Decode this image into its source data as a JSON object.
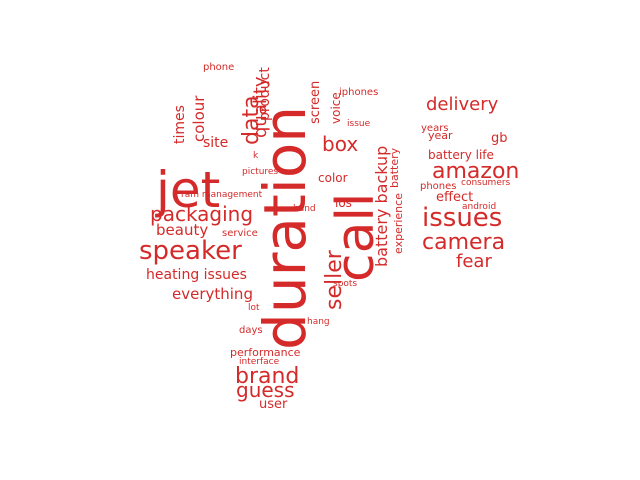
{
  "chart_data": {
    "type": "wordcloud",
    "color": "#d42a2a",
    "words": [
      {
        "text": "duration",
        "weight": 96,
        "orientation": "vertical"
      },
      {
        "text": "call",
        "weight": 90,
        "orientation": "vertical"
      },
      {
        "text": "jet",
        "weight": 62,
        "orientation": "horizontal"
      },
      {
        "text": "speaker",
        "weight": 40,
        "orientation": "horizontal"
      },
      {
        "text": "seller",
        "weight": 36,
        "orientation": "vertical"
      },
      {
        "text": "issues",
        "weight": 34,
        "orientation": "horizontal"
      },
      {
        "text": "packaging",
        "weight": 30,
        "orientation": "horizontal"
      },
      {
        "text": "camera",
        "weight": 30,
        "orientation": "horizontal"
      },
      {
        "text": "data",
        "weight": 29,
        "orientation": "vertical"
      },
      {
        "text": "amazon",
        "weight": 28,
        "orientation": "horizontal"
      },
      {
        "text": "box",
        "weight": 28,
        "orientation": "horizontal"
      },
      {
        "text": "brand",
        "weight": 26,
        "orientation": "horizontal"
      },
      {
        "text": "battery backup",
        "weight": 24,
        "orientation": "vertical"
      },
      {
        "text": "guess",
        "weight": 24,
        "orientation": "horizontal"
      },
      {
        "text": "quality",
        "weight": 22,
        "orientation": "vertical"
      },
      {
        "text": "fear",
        "weight": 22,
        "orientation": "horizontal"
      },
      {
        "text": "delivery",
        "weight": 20,
        "orientation": "horizontal"
      },
      {
        "text": "colour",
        "weight": 18,
        "orientation": "vertical"
      },
      {
        "text": "everything",
        "weight": 17,
        "orientation": "horizontal"
      },
      {
        "text": "beauty",
        "weight": 16,
        "orientation": "horizontal"
      },
      {
        "text": "product",
        "weight": 16,
        "orientation": "vertical"
      },
      {
        "text": "times",
        "weight": 15,
        "orientation": "vertical"
      },
      {
        "text": "site",
        "weight": 15,
        "orientation": "horizontal"
      },
      {
        "text": "heating issues",
        "weight": 14,
        "orientation": "horizontal"
      },
      {
        "text": "screen",
        "weight": 14,
        "orientation": "vertical"
      },
      {
        "text": "user",
        "weight": 14,
        "orientation": "horizontal"
      },
      {
        "text": "effect",
        "weight": 14,
        "orientation": "horizontal"
      },
      {
        "text": "gb",
        "weight": 14,
        "orientation": "horizontal"
      },
      {
        "text": "voice",
        "weight": 12,
        "orientation": "vertical"
      },
      {
        "text": "color",
        "weight": 12,
        "orientation": "horizontal"
      },
      {
        "text": "battery life",
        "weight": 12,
        "orientation": "horizontal"
      },
      {
        "text": "ios",
        "weight": 12,
        "orientation": "horizontal"
      },
      {
        "text": "experience",
        "weight": 11,
        "orientation": "vertical"
      },
      {
        "text": "battery",
        "weight": 11,
        "orientation": "vertical"
      },
      {
        "text": "performance",
        "weight": 11,
        "orientation": "horizontal"
      },
      {
        "text": "year",
        "weight": 11,
        "orientation": "horizontal"
      },
      {
        "text": "service",
        "weight": 10,
        "orientation": "horizontal"
      },
      {
        "text": "phone",
        "weight": 10,
        "orientation": "horizontal"
      },
      {
        "text": "iphones",
        "weight": 10,
        "orientation": "horizontal"
      },
      {
        "text": "days",
        "weight": 10,
        "orientation": "horizontal"
      },
      {
        "text": "years",
        "weight": 10,
        "orientation": "horizontal"
      },
      {
        "text": "phones",
        "weight": 10,
        "orientation": "horizontal"
      },
      {
        "text": "lot",
        "weight": 9,
        "orientation": "horizontal"
      },
      {
        "text": "hang",
        "weight": 9,
        "orientation": "horizontal"
      },
      {
        "text": "spots",
        "weight": 9,
        "orientation": "horizontal"
      },
      {
        "text": "hand",
        "weight": 9,
        "orientation": "horizontal"
      },
      {
        "text": "pictures",
        "weight": 9,
        "orientation": "horizontal"
      },
      {
        "text": "ram management",
        "weight": 9,
        "orientation": "horizontal"
      },
      {
        "text": "issue",
        "weight": 9,
        "orientation": "horizontal"
      },
      {
        "text": "consumers",
        "weight": 9,
        "orientation": "horizontal"
      },
      {
        "text": "android",
        "weight": 9,
        "orientation": "horizontal"
      },
      {
        "text": "interface",
        "weight": 9,
        "orientation": "horizontal"
      },
      {
        "text": "k",
        "weight": 8,
        "orientation": "horizontal"
      }
    ]
  }
}
